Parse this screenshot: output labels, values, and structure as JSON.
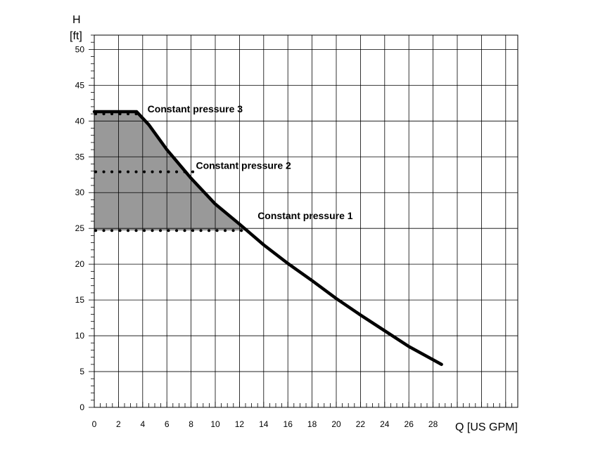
{
  "chart_data": {
    "type": "line",
    "x_label": "Q [US GPM]",
    "y_label_line1": "H",
    "y_label_line2": "[ft]",
    "xlim": [
      0,
      35
    ],
    "ylim": [
      0,
      52
    ],
    "x_ticks": [
      0,
      2,
      4,
      6,
      8,
      10,
      12,
      14,
      16,
      18,
      20,
      22,
      24,
      26,
      28
    ],
    "y_ticks": [
      0,
      5,
      10,
      15,
      20,
      25,
      30,
      35,
      40,
      45,
      50
    ],
    "grid": true,
    "max_curve": [
      [
        0,
        41.3
      ],
      [
        3.5,
        41.3
      ],
      [
        4.5,
        39.5
      ],
      [
        6,
        36
      ],
      [
        8,
        32
      ],
      [
        10,
        28.4
      ],
      [
        12,
        25.6
      ],
      [
        14,
        22.7
      ],
      [
        16,
        20.1
      ],
      [
        18,
        17.7
      ],
      [
        20,
        15.2
      ],
      [
        22,
        12.9
      ],
      [
        24,
        10.7
      ],
      [
        26,
        8.5
      ],
      [
        28.7,
        6
      ]
    ],
    "shaded_region_upper": [
      [
        0,
        41.3
      ],
      [
        3.5,
        41.3
      ],
      [
        4.5,
        39.5
      ],
      [
        6,
        36
      ],
      [
        8,
        32
      ],
      [
        10,
        28.4
      ],
      [
        12.2,
        25.2
      ],
      [
        12.5,
        24.7
      ]
    ],
    "shaded_region_base": 24.7,
    "constant_pressure_lines": [
      {
        "label": "Constant pressure 3",
        "h": 41,
        "q_end": 3.6,
        "label_q": 4.4,
        "label_h": 41.2
      },
      {
        "label": "Constant pressure 2",
        "h": 32.9,
        "q_end": 8.2,
        "label_q": 8.4,
        "label_h": 33.3
      },
      {
        "label": "Constant pressure 1",
        "h": 24.7,
        "q_end": 12.5,
        "label_q": 13.5,
        "label_h": 26.3
      }
    ],
    "colors": {
      "curve": "#000000",
      "shading": "#999999",
      "grid": "#000000"
    }
  }
}
